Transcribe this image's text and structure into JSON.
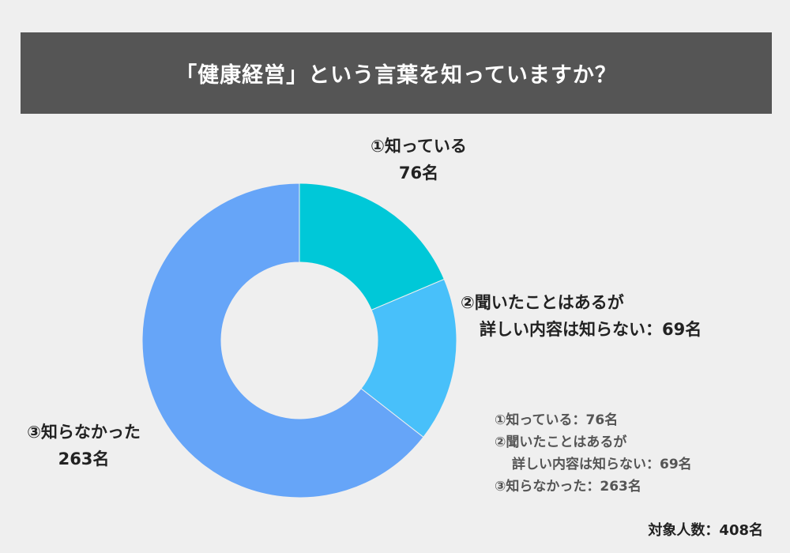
{
  "chart_data": {
    "type": "pie",
    "title": "「健康経営」という言葉を知っていますか？",
    "categories": [
      "①知っている",
      "②聞いたことはあるが詳しい内容は知らない",
      "③知らなかった"
    ],
    "values": [
      76,
      69,
      263
    ],
    "unit": "名",
    "colors": [
      "#00c8d8",
      "#48c0fa",
      "#66a5f8"
    ],
    "slice_labels": [
      {
        "lines": [
          "①知っている",
          "76名"
        ]
      },
      {
        "lines": [
          "②聞いたことはあるが",
          "詳しい内容は知らない：69名"
        ]
      },
      {
        "lines": [
          "③知らなかった",
          "263名"
        ]
      }
    ],
    "legend": {
      "lines": [
        "①知っている：76名",
        "②聞いたことはあるが",
        "詳しい内容は知らない：69名",
        "③知らなかった：263名"
      ]
    },
    "total": "対象人数：408名"
  }
}
